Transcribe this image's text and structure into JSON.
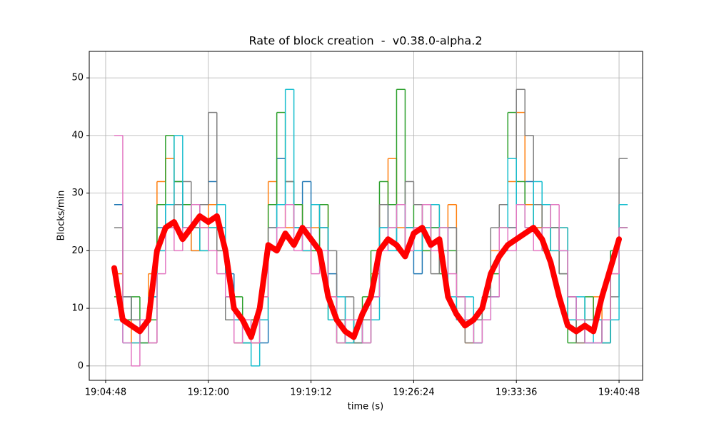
{
  "chart_data": {
    "type": "line",
    "title": "Rate of block creation  -  v0.38.0-alpha.2",
    "x_label": "time (s)",
    "y_label": "Blocks/min",
    "grid": true,
    "step": true,
    "xlim": [
      "19:03:39",
      "19:42:27"
    ],
    "xticks": [
      "19:04:48",
      "19:12:00",
      "19:19:12",
      "19:26:24",
      "19:33:36",
      "19:40:48"
    ],
    "ylim": [
      -2.5,
      54.6
    ],
    "yticks": [
      0,
      10,
      20,
      30,
      40,
      50
    ],
    "x": [
      "19:05:24",
      "19:06:00",
      "19:06:36",
      "19:07:12",
      "19:07:48",
      "19:08:24",
      "19:09:00",
      "19:09:36",
      "19:10:12",
      "19:10:48",
      "19:11:24",
      "19:12:00",
      "19:12:36",
      "19:13:12",
      "19:13:48",
      "19:14:24",
      "19:15:00",
      "19:15:36",
      "19:16:12",
      "19:16:48",
      "19:17:24",
      "19:18:00",
      "19:18:36",
      "19:19:12",
      "19:19:48",
      "19:20:24",
      "19:21:00",
      "19:21:36",
      "19:22:12",
      "19:22:48",
      "19:23:24",
      "19:24:00",
      "19:24:36",
      "19:25:12",
      "19:25:48",
      "19:26:24",
      "19:27:00",
      "19:27:36",
      "19:28:12",
      "19:28:48",
      "19:29:24",
      "19:30:00",
      "19:30:36",
      "19:31:12",
      "19:31:48",
      "19:32:24",
      "19:33:00",
      "19:33:36",
      "19:34:12",
      "19:34:48",
      "19:35:24",
      "19:36:00",
      "19:36:36",
      "19:37:12",
      "19:37:48",
      "19:38:24",
      "19:39:00",
      "19:39:36",
      "19:40:12",
      "19:40:48"
    ],
    "series": [
      {
        "color": "#1f77b4",
        "values": [
          28,
          12,
          8,
          4,
          12,
          24,
          28,
          32,
          24,
          20,
          28,
          32,
          24,
          16,
          8,
          4,
          8,
          4,
          24,
          36,
          28,
          24,
          32,
          20,
          24,
          16,
          8,
          4,
          4,
          8,
          12,
          24,
          28,
          20,
          24,
          16,
          28,
          24,
          20,
          24,
          12,
          8,
          4,
          8,
          12,
          20,
          24,
          28,
          32,
          24,
          20,
          24,
          20,
          12,
          8,
          4,
          4,
          8,
          20,
          24
        ]
      },
      {
        "color": "#ff7f0e",
        "values": [
          16,
          8,
          4,
          8,
          16,
          32,
          36,
          28,
          24,
          20,
          24,
          28,
          20,
          12,
          4,
          8,
          4,
          12,
          32,
          28,
          24,
          28,
          20,
          24,
          28,
          12,
          8,
          4,
          8,
          4,
          16,
          28,
          36,
          24,
          20,
          24,
          20,
          28,
          24,
          28,
          8,
          4,
          8,
          12,
          20,
          28,
          32,
          44,
          28,
          24,
          28,
          20,
          24,
          8,
          4,
          8,
          12,
          4,
          16,
          28
        ]
      },
      {
        "color": "#2ca02c",
        "values": [
          12,
          8,
          12,
          4,
          8,
          28,
          40,
          32,
          28,
          24,
          20,
          24,
          28,
          8,
          12,
          4,
          8,
          8,
          28,
          44,
          32,
          28,
          24,
          20,
          28,
          8,
          4,
          8,
          4,
          12,
          20,
          32,
          28,
          48,
          24,
          28,
          20,
          24,
          16,
          20,
          12,
          8,
          4,
          12,
          16,
          24,
          44,
          32,
          24,
          28,
          20,
          24,
          16,
          4,
          8,
          12,
          8,
          4,
          20,
          24
        ]
      },
      {
        "color": "#7f7f7f",
        "values": [
          24,
          12,
          8,
          8,
          4,
          20,
          24,
          28,
          32,
          24,
          28,
          44,
          20,
          8,
          4,
          8,
          4,
          8,
          24,
          28,
          32,
          24,
          20,
          28,
          24,
          20,
          8,
          12,
          4,
          8,
          12,
          28,
          24,
          20,
          32,
          28,
          24,
          16,
          20,
          24,
          8,
          4,
          8,
          12,
          24,
          28,
          24,
          48,
          40,
          28,
          24,
          24,
          16,
          12,
          4,
          8,
          8,
          4,
          12,
          36
        ]
      },
      {
        "color": "#17becf",
        "values": [
          8,
          4,
          4,
          8,
          12,
          20,
          28,
          40,
          24,
          28,
          20,
          24,
          28,
          12,
          8,
          4,
          0,
          8,
          20,
          28,
          48,
          24,
          20,
          28,
          24,
          8,
          12,
          4,
          8,
          4,
          8,
          24,
          20,
          28,
          24,
          20,
          24,
          28,
          24,
          12,
          8,
          12,
          4,
          8,
          12,
          20,
          36,
          28,
          24,
          32,
          28,
          20,
          24,
          8,
          12,
          4,
          8,
          4,
          8,
          28
        ]
      },
      {
        "color": "#e377c2",
        "values": [
          40,
          4,
          0,
          8,
          4,
          16,
          24,
          20,
          24,
          28,
          24,
          20,
          16,
          12,
          4,
          8,
          4,
          12,
          20,
          24,
          28,
          20,
          24,
          16,
          20,
          12,
          4,
          8,
          8,
          4,
          12,
          20,
          24,
          28,
          20,
          24,
          28,
          20,
          24,
          16,
          12,
          8,
          4,
          8,
          12,
          24,
          20,
          28,
          24,
          20,
          24,
          28,
          20,
          12,
          8,
          4,
          4,
          8,
          16,
          24
        ]
      },
      {
        "color": "#ff0000",
        "width": 8,
        "values": [
          17,
          8,
          7,
          6,
          8,
          20,
          24,
          25,
          22,
          24,
          26,
          25,
          26,
          20,
          10,
          8,
          5,
          10,
          21,
          20,
          23,
          21,
          24,
          22,
          20,
          12,
          8,
          6,
          5,
          9,
          12,
          20,
          22,
          21,
          19,
          23,
          24,
          21,
          22,
          12,
          9,
          7,
          8,
          10,
          16,
          19,
          21,
          22,
          23,
          24,
          22,
          18,
          12,
          7,
          6,
          7,
          6,
          12,
          17,
          22
        ]
      }
    ]
  }
}
